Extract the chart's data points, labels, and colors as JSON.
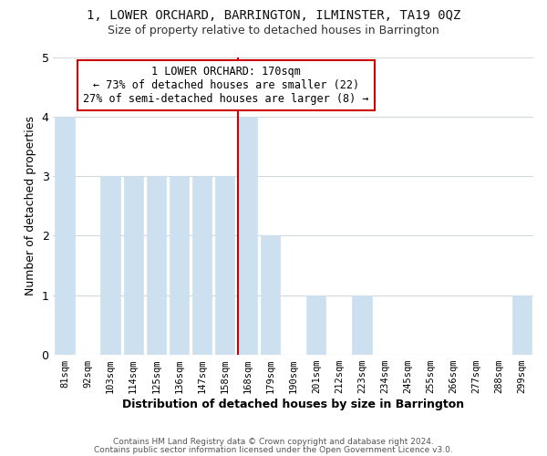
{
  "title": "1, LOWER ORCHARD, BARRINGTON, ILMINSTER, TA19 0QZ",
  "subtitle": "Size of property relative to detached houses in Barrington",
  "xlabel": "Distribution of detached houses by size in Barrington",
  "ylabel": "Number of detached properties",
  "bar_labels": [
    "81sqm",
    "92sqm",
    "103sqm",
    "114sqm",
    "125sqm",
    "136sqm",
    "147sqm",
    "158sqm",
    "168sqm",
    "179sqm",
    "190sqm",
    "201sqm",
    "212sqm",
    "223sqm",
    "234sqm",
    "245sqm",
    "255sqm",
    "266sqm",
    "277sqm",
    "288sqm",
    "299sqm"
  ],
  "bar_values": [
    4,
    0,
    3,
    3,
    3,
    3,
    3,
    3,
    4,
    2,
    0,
    1,
    0,
    1,
    0,
    0,
    0,
    0,
    0,
    0,
    1
  ],
  "bar_color": "#cce0f0",
  "highlight_index": 8,
  "highlight_line_color": "#cc0000",
  "ylim": [
    0,
    5
  ],
  "yticks": [
    0,
    1,
    2,
    3,
    4,
    5
  ],
  "annotation_title": "1 LOWER ORCHARD: 170sqm",
  "annotation_line1": "← 73% of detached houses are smaller (22)",
  "annotation_line2": "27% of semi-detached houses are larger (8) →",
  "annotation_box_color": "#ffffff",
  "annotation_box_edge": "#cc0000",
  "footer1": "Contains HM Land Registry data © Crown copyright and database right 2024.",
  "footer2": "Contains public sector information licensed under the Open Government Licence v3.0.",
  "background_color": "#ffffff",
  "grid_color": "#d0d8e0"
}
